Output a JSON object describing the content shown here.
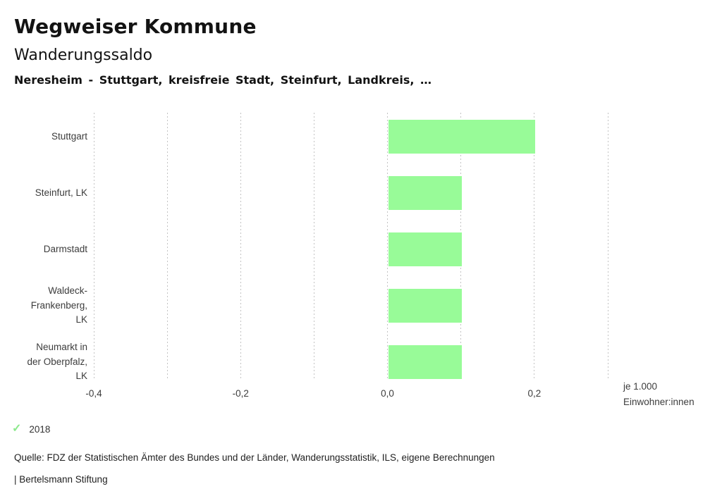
{
  "header": {
    "title": "Wegweiser Kommune",
    "subtitle": "Wanderungssaldo",
    "locations": "Neresheim - Stuttgart, kreisfreie Stadt, Steinfurt, Landkreis, …"
  },
  "chart_data": {
    "type": "bar",
    "orientation": "horizontal",
    "title": "Wanderungssaldo",
    "categories": [
      "Stuttgart",
      "Steinfurt, LK",
      "Darmstadt",
      "Waldeck-Frankenberg, LK",
      "Neumarkt in der Oberpfalz, LK"
    ],
    "category_lines": [
      [
        "Stuttgart"
      ],
      [
        "Steinfurt, LK"
      ],
      [
        "Darmstadt"
      ],
      [
        "Waldeck-",
        "Frankenberg,",
        "LK"
      ],
      [
        "Neumarkt in",
        "der Oberpfalz,",
        "LK"
      ]
    ],
    "values": [
      0.2,
      0.1,
      0.1,
      0.1,
      0.1
    ],
    "xlim": [
      -0.4,
      0.3
    ],
    "gridline_step": 0.1,
    "grid": true,
    "x_ticks": [
      {
        "value": -0.4,
        "label": "-0,4"
      },
      {
        "value": -0.2,
        "label": "-0,2"
      },
      {
        "value": 0.0,
        "label": "0,0"
      },
      {
        "value": 0.2,
        "label": "0,2"
      }
    ],
    "unit_label_lines": [
      "je 1.000",
      "Einwohner:innen"
    ],
    "bar_color": "#98fb98",
    "gridline_color": "#c3c3c3",
    "legend": {
      "year": "2018",
      "check_icon": "✓",
      "check_color": "#8ce98c"
    }
  },
  "footer": {
    "source": "Quelle: FDZ der Statistischen Ämter des Bundes und der Länder, Wanderungsstatistik, ILS, eigene Berechnungen",
    "branding": "| Bertelsmann Stiftung"
  }
}
